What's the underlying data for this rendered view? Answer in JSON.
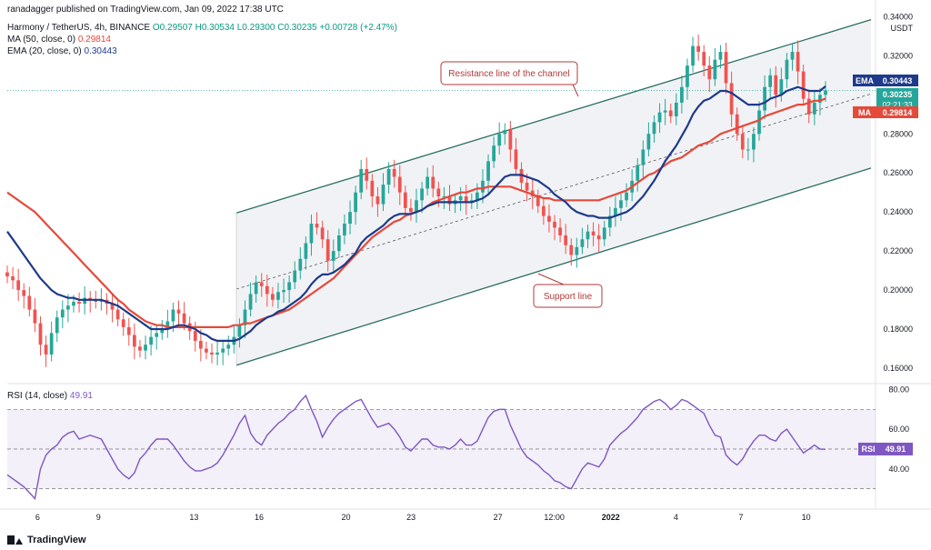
{
  "header": {
    "publisher": "ranadagger published on TradingView.com, Jan 09, 2022 17:38 UTC",
    "symbol": "Harmony / TetherUS, 4h, BINANCE",
    "ohlc": "O0.29507 H0.30534 L0.29300 C0.30235 +0.00728 (+2.47%)",
    "ma_label": "MA (50, close, 0)",
    "ma_value": "0.29814",
    "ema_label": "EMA (20, close, 0)",
    "ema_value": "0.30443",
    "rsi_label": "RSI (14, close)",
    "rsi_value": "49.91",
    "currency": "USDT"
  },
  "brand": "TradingView",
  "colors": {
    "up": "#26a69a",
    "down": "#ef5350",
    "ema": "#1e3a8a",
    "ma": "#e5493a",
    "rsi": "#7e57c2",
    "channel": "#2a6f61",
    "annotation": "#b03a3a"
  },
  "chart_data": [
    {
      "type": "candlestick",
      "title": "Harmony / TetherUS, 4h, BINANCE",
      "x_tick_labels": [
        "6",
        "9",
        "13",
        "16",
        "20",
        "23",
        "27",
        "12:00",
        "2022",
        "4",
        "7",
        "10"
      ],
      "y_tick_labels": [
        "0.34000",
        "0.32000",
        "0.30000",
        "0.28000",
        "0.26000",
        "0.24000",
        "0.22000",
        "0.20000",
        "0.18000",
        "0.16000"
      ],
      "ylim": [
        0.153,
        0.343
      ],
      "price_labels": [
        {
          "label": "EMA",
          "value": "0.30443",
          "color": "#1e3a8a"
        },
        {
          "label": "",
          "value": "0.30235",
          "sub": "02:21:33",
          "color": "#26a69a"
        },
        {
          "label": "MA",
          "value": "0.29814",
          "color": "#e5493a"
        }
      ],
      "close": [
        0.207,
        0.205,
        0.2,
        0.197,
        0.19,
        0.183,
        0.172,
        0.167,
        0.178,
        0.186,
        0.19,
        0.192,
        0.194,
        0.193,
        0.196,
        0.195,
        0.194,
        0.195,
        0.193,
        0.19,
        0.185,
        0.181,
        0.177,
        0.171,
        0.169,
        0.172,
        0.176,
        0.178,
        0.18,
        0.184,
        0.19,
        0.188,
        0.183,
        0.179,
        0.174,
        0.17,
        0.168,
        0.167,
        0.168,
        0.17,
        0.172,
        0.176,
        0.182,
        0.19,
        0.198,
        0.204,
        0.202,
        0.198,
        0.195,
        0.199,
        0.2,
        0.204,
        0.21,
        0.216,
        0.224,
        0.234,
        0.232,
        0.226,
        0.215,
        0.22,
        0.228,
        0.234,
        0.24,
        0.25,
        0.262,
        0.256,
        0.248,
        0.244,
        0.254,
        0.262,
        0.258,
        0.25,
        0.242,
        0.24,
        0.246,
        0.252,
        0.258,
        0.252,
        0.248,
        0.248,
        0.244,
        0.246,
        0.248,
        0.245,
        0.246,
        0.25,
        0.256,
        0.266,
        0.274,
        0.28,
        0.282,
        0.272,
        0.262,
        0.255,
        0.251,
        0.248,
        0.243,
        0.238,
        0.235,
        0.232,
        0.228,
        0.223,
        0.218,
        0.222,
        0.226,
        0.23,
        0.228,
        0.226,
        0.232,
        0.238,
        0.242,
        0.246,
        0.25,
        0.256,
        0.264,
        0.272,
        0.28,
        0.286,
        0.291,
        0.292,
        0.289,
        0.296,
        0.304,
        0.315,
        0.325,
        0.322,
        0.315,
        0.308,
        0.318,
        0.322,
        0.306,
        0.29,
        0.28,
        0.272,
        0.272,
        0.28,
        0.292,
        0.304,
        0.31,
        0.3,
        0.308,
        0.318,
        0.322,
        0.312,
        0.298,
        0.29,
        0.296,
        0.3,
        0.3023
      ],
      "ema20": [
        0.23,
        0.226,
        0.222,
        0.218,
        0.214,
        0.21,
        0.206,
        0.203,
        0.2,
        0.198,
        0.197,
        0.196,
        0.196,
        0.195,
        0.195,
        0.195,
        0.195,
        0.195,
        0.194,
        0.193,
        0.192,
        0.19,
        0.188,
        0.186,
        0.184,
        0.182,
        0.18,
        0.18,
        0.18,
        0.18,
        0.181,
        0.182,
        0.182,
        0.181,
        0.18,
        0.178,
        0.177,
        0.175,
        0.174,
        0.174,
        0.174,
        0.174,
        0.175,
        0.177,
        0.179,
        0.182,
        0.184,
        0.186,
        0.187,
        0.189,
        0.19,
        0.192,
        0.194,
        0.196,
        0.199,
        0.203,
        0.206,
        0.208,
        0.208,
        0.209,
        0.211,
        0.213,
        0.216,
        0.219,
        0.224,
        0.227,
        0.229,
        0.231,
        0.233,
        0.236,
        0.238,
        0.239,
        0.239,
        0.239,
        0.24,
        0.241,
        0.243,
        0.244,
        0.245,
        0.245,
        0.245,
        0.245,
        0.245,
        0.245,
        0.245,
        0.246,
        0.247,
        0.249,
        0.252,
        0.255,
        0.258,
        0.259,
        0.259,
        0.259,
        0.258,
        0.257,
        0.256,
        0.254,
        0.252,
        0.249,
        0.247,
        0.245,
        0.242,
        0.24,
        0.239,
        0.238,
        0.238,
        0.237,
        0.237,
        0.237,
        0.238,
        0.239,
        0.24,
        0.242,
        0.245,
        0.248,
        0.252,
        0.256,
        0.261,
        0.266,
        0.27,
        0.274,
        0.279,
        0.284,
        0.29,
        0.294,
        0.297,
        0.298,
        0.3,
        0.302,
        0.302,
        0.301,
        0.299,
        0.297,
        0.295,
        0.295,
        0.295,
        0.296,
        0.298,
        0.299,
        0.3,
        0.302,
        0.303,
        0.304,
        0.303,
        0.302,
        0.302,
        0.302,
        0.3044
      ],
      "ma50": [
        0.25,
        0.248,
        0.246,
        0.244,
        0.242,
        0.24,
        0.237,
        0.234,
        0.231,
        0.228,
        0.225,
        0.222,
        0.219,
        0.216,
        0.213,
        0.21,
        0.207,
        0.204,
        0.201,
        0.198,
        0.195,
        0.193,
        0.19,
        0.188,
        0.186,
        0.184,
        0.183,
        0.182,
        0.182,
        0.181,
        0.181,
        0.181,
        0.181,
        0.181,
        0.181,
        0.181,
        0.181,
        0.181,
        0.181,
        0.181,
        0.181,
        0.182,
        0.182,
        0.183,
        0.183,
        0.184,
        0.185,
        0.186,
        0.187,
        0.188,
        0.189,
        0.19,
        0.192,
        0.194,
        0.196,
        0.198,
        0.2,
        0.202,
        0.204,
        0.206,
        0.209,
        0.212,
        0.215,
        0.218,
        0.221,
        0.224,
        0.227,
        0.229,
        0.231,
        0.233,
        0.235,
        0.236,
        0.238,
        0.239,
        0.24,
        0.241,
        0.243,
        0.245,
        0.246,
        0.247,
        0.248,
        0.249,
        0.25,
        0.25,
        0.251,
        0.252,
        0.252,
        0.253,
        0.253,
        0.253,
        0.253,
        0.253,
        0.252,
        0.251,
        0.25,
        0.249,
        0.248,
        0.247,
        0.247,
        0.246,
        0.246,
        0.246,
        0.246,
        0.246,
        0.246,
        0.246,
        0.246,
        0.246,
        0.247,
        0.248,
        0.249,
        0.25,
        0.251,
        0.253,
        0.255,
        0.257,
        0.259,
        0.26,
        0.262,
        0.264,
        0.266,
        0.267,
        0.268,
        0.27,
        0.272,
        0.274,
        0.275,
        0.276,
        0.278,
        0.28,
        0.281,
        0.282,
        0.283,
        0.284,
        0.285,
        0.286,
        0.287,
        0.289,
        0.29,
        0.291,
        0.292,
        0.293,
        0.294,
        0.295,
        0.295,
        0.296,
        0.297,
        0.297,
        0.2981
      ],
      "annotations": [
        "Resistance line of the channel",
        "Support line"
      ]
    },
    {
      "type": "line",
      "title": "RSI (14, close)",
      "y_tick_labels": [
        "80.00",
        "60.00",
        "40.00"
      ],
      "ylim": [
        22,
        83
      ],
      "bands": [
        30,
        50,
        70
      ],
      "current": "49.91",
      "values": [
        37,
        35,
        33,
        31,
        28,
        25,
        40,
        47,
        50,
        52,
        56,
        58,
        59,
        55,
        56,
        57,
        56,
        55,
        50,
        45,
        40,
        37,
        35,
        38,
        45,
        48,
        52,
        55,
        55,
        55,
        52,
        48,
        44,
        41,
        39,
        39,
        40,
        41,
        43,
        47,
        52,
        57,
        63,
        67,
        58,
        54,
        52,
        57,
        60,
        63,
        65,
        68,
        70,
        74,
        77,
        70,
        64,
        56,
        61,
        65,
        68,
        70,
        72,
        74,
        75,
        70,
        65,
        61,
        62,
        63,
        60,
        56,
        51,
        49,
        52,
        55,
        55,
        52,
        51,
        51,
        50,
        52,
        55,
        52,
        52,
        54,
        60,
        66,
        69,
        70,
        70,
        62,
        56,
        50,
        46,
        44,
        42,
        39,
        37,
        34,
        33,
        31,
        30,
        35,
        40,
        43,
        42,
        41,
        45,
        52,
        55,
        58,
        60,
        63,
        66,
        70,
        72,
        74,
        75,
        73,
        70,
        72,
        75,
        74,
        72,
        70,
        68,
        62,
        57,
        56,
        47,
        44,
        42,
        45,
        50,
        54,
        57,
        57,
        55,
        54,
        58,
        60,
        56,
        52,
        48,
        50,
        52,
        50,
        49.9
      ]
    }
  ]
}
